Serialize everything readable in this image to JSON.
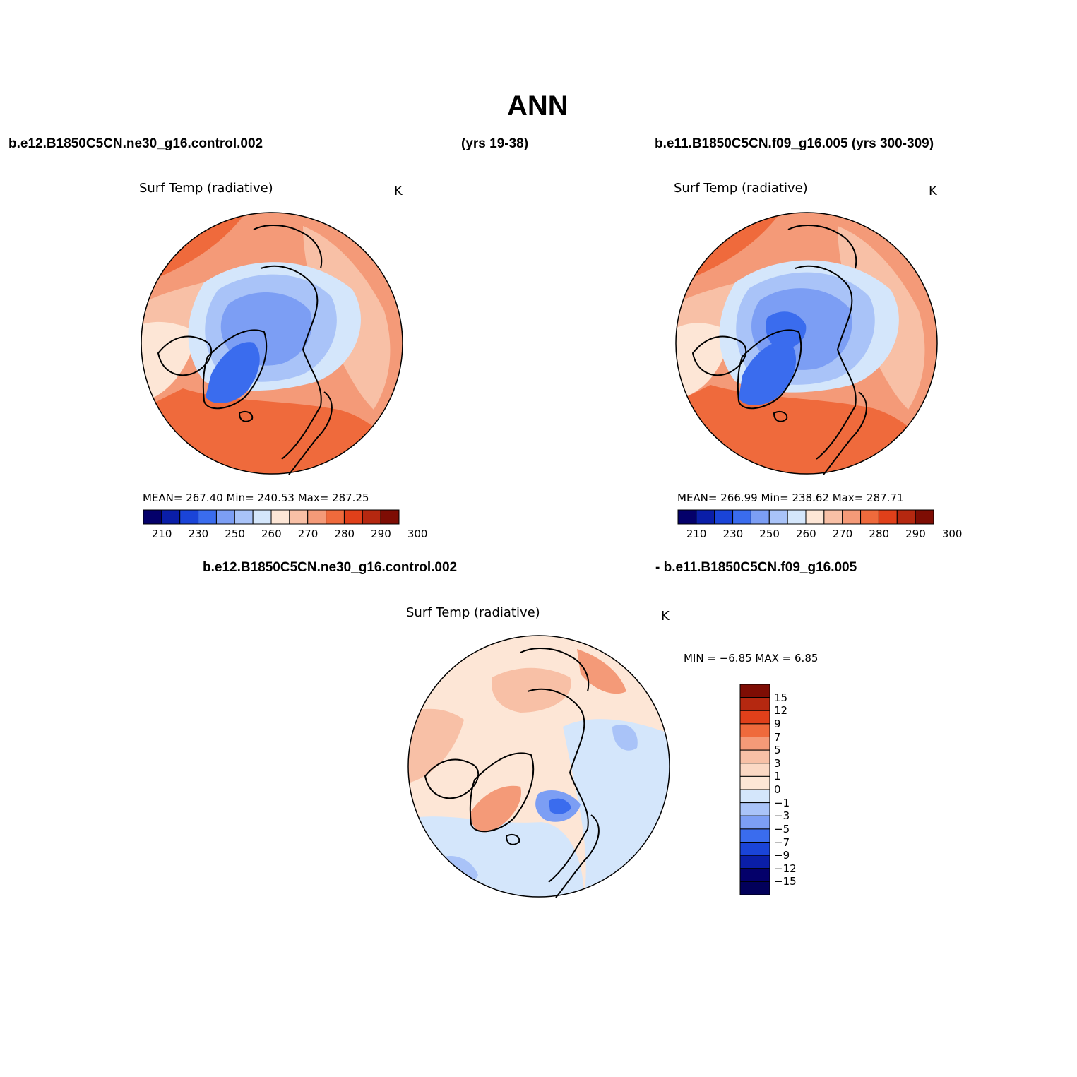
{
  "header": {
    "title": "ANN",
    "case1": "b.e12.B1850C5CN.ne30_g16.control.002",
    "case1_years": "(yrs 19-38)",
    "case2": "b.e11.B1850C5CN.f09_g16.005 (yrs 300-309)",
    "diff_case1": "b.e12.B1850C5CN.ne30_g16.control.002",
    "diff_case2": "- b.e11.B1850C5CN.f09_g16.005"
  },
  "panels": [
    {
      "variable": "Surf Temp (radiative)",
      "units": "K",
      "stats": "MEAN= 267.40   Min= 240.53   Max= 287.25",
      "mean": 267.4,
      "min": 240.53,
      "max": 287.25
    },
    {
      "variable": "Surf Temp (radiative)",
      "units": "K",
      "stats": "MEAN= 266.99   Min= 238.62   Max= 287.71",
      "mean": 266.99,
      "min": 238.62,
      "max": 287.71
    },
    {
      "variable": "Surf Temp (radiative)",
      "units": "K",
      "stats": "MIN =   −6.85 MAX =    6.85",
      "min": -6.85,
      "max": 6.85
    }
  ],
  "abs_colorbar": {
    "tick_labels": [
      "210",
      "230",
      "250",
      "260",
      "270",
      "280",
      "290",
      "300"
    ],
    "colors": [
      "#04006a",
      "#0a1ea8",
      "#1a44d8",
      "#3a6cee",
      "#7c9ef4",
      "#a9c3f8",
      "#d4e6fb",
      "#fde6d6",
      "#f8c0a6",
      "#f49a78",
      "#ef6a3c",
      "#e0401a",
      "#b52810",
      "#7e0d04"
    ]
  },
  "diff_colorbar": {
    "tick_labels": [
      "15",
      "12",
      "9",
      "7",
      "5",
      "3",
      "1",
      "0",
      "−1",
      "−3",
      "−5",
      "−7",
      "−9",
      "−12",
      "−15"
    ],
    "colors": [
      "#7e0d04",
      "#b52810",
      "#e0401a",
      "#ef6a3c",
      "#f49a78",
      "#f8c0a6",
      "#fbd8c4",
      "#fde6d6",
      "#d4e6fb",
      "#a9c3f8",
      "#7c9ef4",
      "#3a6cee",
      "#1a44d8",
      "#0a1ea8",
      "#04006a",
      "#02005a"
    ]
  },
  "palette": {
    "warm_dark": "#ef6a3c",
    "warm_mid": "#f49a78",
    "warm_light": "#f8c0a6",
    "neutral_warm": "#fde6d6",
    "neutral_cool": "#d4e6fb",
    "cool_light": "#a9c3f8",
    "cool_mid": "#7c9ef4",
    "cool_dark": "#3a6cee"
  }
}
